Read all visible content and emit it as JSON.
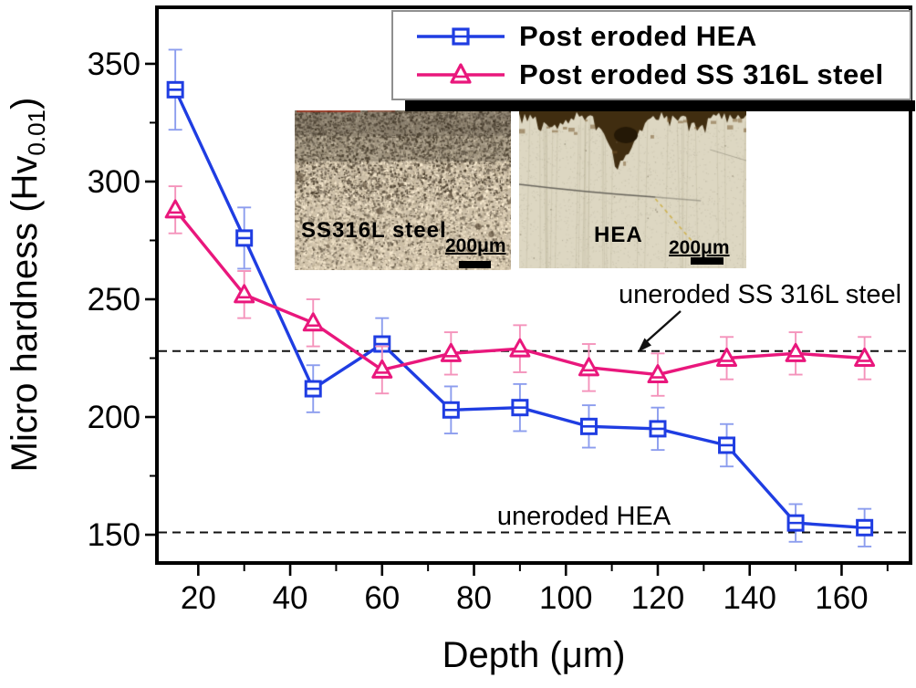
{
  "chart_data": {
    "type": "line",
    "title": "",
    "xlabel": "Depth (μm)",
    "ylabel": "Micro hardness (Hv",
    "ylabel_sub": "0.01",
    "ylabel_suffix": ")",
    "xlim": [
      11,
      175
    ],
    "ylim": [
      138,
      374
    ],
    "grid": false,
    "legend_position": "top-right",
    "x_major_ticks": [
      20,
      40,
      60,
      80,
      100,
      120,
      140,
      160
    ],
    "x_minor_ticks": [
      10,
      30,
      50,
      70,
      90,
      110,
      130,
      150,
      170
    ],
    "y_major_ticks": [
      150,
      200,
      250,
      300,
      350
    ],
    "y_minor_ticks": [
      175,
      225,
      275,
      325
    ],
    "x": [
      15,
      30,
      45,
      60,
      75,
      90,
      105,
      120,
      135,
      150,
      165
    ],
    "series": [
      {
        "name": "Post eroded HEA",
        "color": "#1f3de2",
        "error_color": "#8c9dee",
        "marker": "square",
        "values": [
          339,
          276,
          212,
          231,
          203,
          204,
          196,
          195,
          188,
          155,
          153
        ],
        "errors": [
          17,
          13,
          10,
          11,
          10,
          10,
          9,
          9,
          9,
          8,
          8
        ]
      },
      {
        "name": "Post eroded SS 316L steel",
        "color": "#e9177c",
        "error_color": "#f493bb",
        "marker": "triangle",
        "values": [
          288,
          252,
          240,
          220,
          227,
          229,
          221,
          218,
          225,
          227,
          225
        ],
        "errors": [
          10,
          10,
          10,
          10,
          9,
          10,
          10,
          9,
          9,
          9,
          9
        ]
      }
    ],
    "reference_lines": [
      {
        "label": "uneroded SS 316L steel",
        "value": 228,
        "style": "dashed",
        "color": "#111111"
      },
      {
        "label": "uneroded HEA",
        "value": 151,
        "style": "dashed",
        "color": "#111111"
      }
    ]
  },
  "insets": [
    {
      "label": "SS316L steel",
      "scale_label": "200μm"
    },
    {
      "label": "HEA",
      "scale_label": "200μm"
    }
  ]
}
